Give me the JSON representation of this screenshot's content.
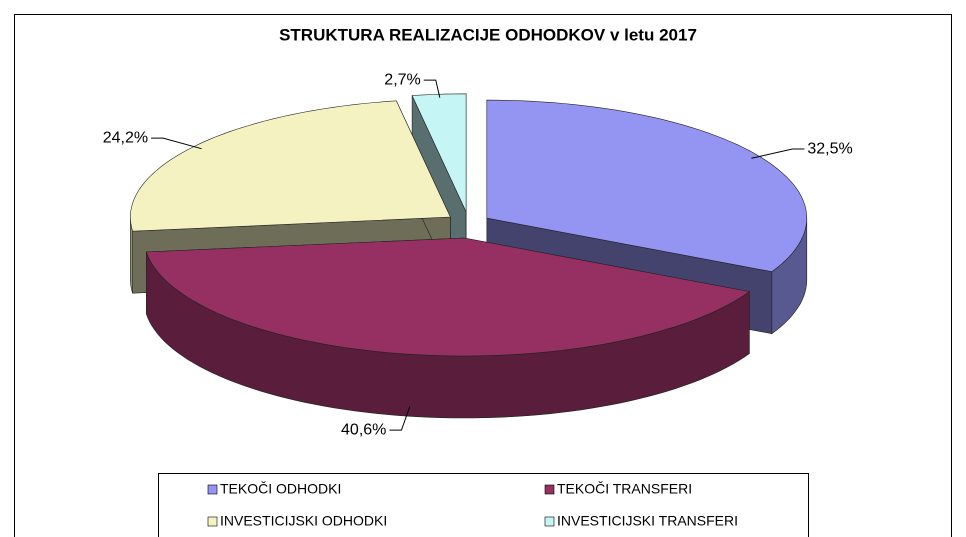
{
  "chart_data": {
    "type": "pie",
    "title": "STRUKTURA REALIZACIJE ODHODKOV v letu 2017",
    "categories": [
      "TEKOČI ODHODKI",
      "TEKOČI TRANSFERI",
      "INVESTICIJSKI ODHODKI",
      "INVESTICIJSKI TRANSFERI"
    ],
    "values": [
      32.5,
      40.6,
      24.2,
      2.7
    ],
    "value_labels": [
      "32,5%",
      "40,6%",
      "24,2%",
      "2,7%"
    ],
    "colors": [
      "#9494f2",
      "#963062",
      "#f5f2c2",
      "#c5f5f5"
    ],
    "legend": "bottom"
  }
}
